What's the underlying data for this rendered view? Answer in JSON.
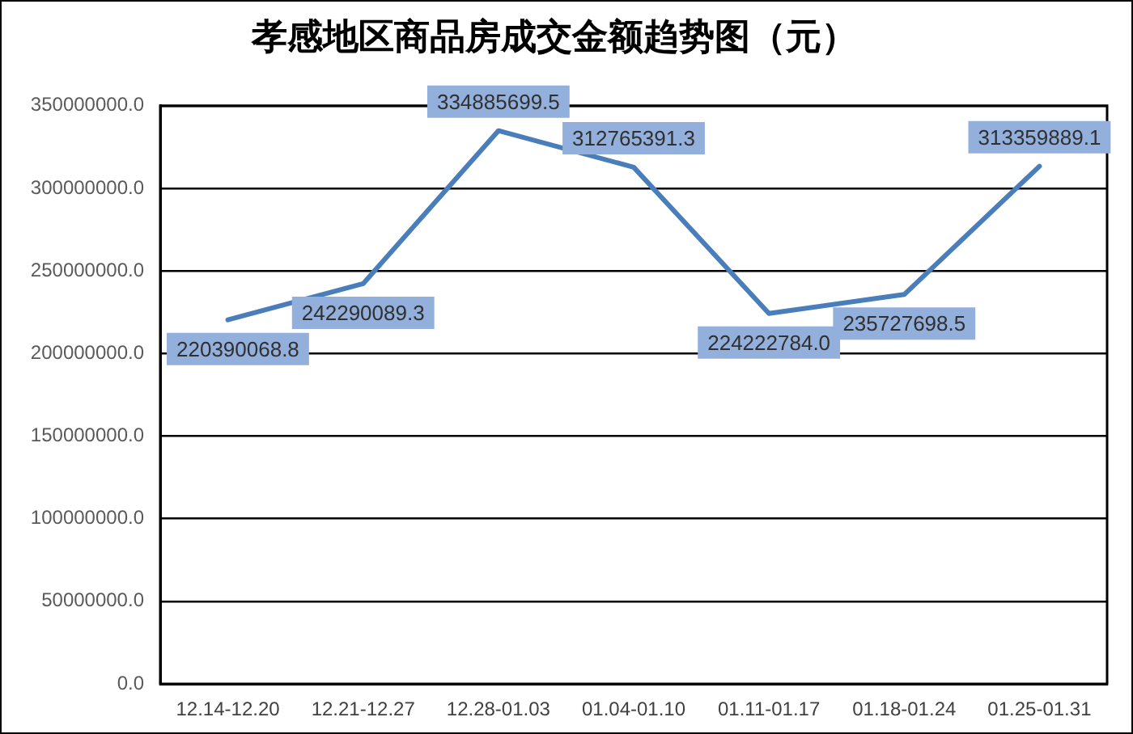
{
  "chart_data": {
    "type": "line",
    "title": "孝感地区商品房成交金额趋势图（元）",
    "categories": [
      "12.14-12.20",
      "12.21-12.27",
      "12.28-01.03",
      "01.04-01.10",
      "01.11-01.17",
      "01.18-01.24",
      "01.25-01.31"
    ],
    "values": [
      220390068.8,
      242290089.3,
      334885699.5,
      312765391.3,
      224222784.0,
      235727698.5,
      313359889.1
    ],
    "value_labels": [
      "220390068.8",
      "242290089.3",
      "334885699.5",
      "312765391.3",
      "224222784.0",
      "235727698.5",
      "313359889.1"
    ],
    "color": "#4a7ebb",
    "ylim": [
      0,
      350000000
    ],
    "yticks": [
      {
        "value": 0,
        "label": "0.0"
      },
      {
        "value": 50000000,
        "label": "50000000.0"
      },
      {
        "value": 100000000,
        "label": "100000000.0"
      },
      {
        "value": 150000000,
        "label": "150000000.0"
      },
      {
        "value": 200000000,
        "label": "200000000.0"
      },
      {
        "value": 250000000,
        "label": "250000000.0"
      },
      {
        "value": 300000000,
        "label": "300000000.0"
      },
      {
        "value": 350000000,
        "label": "350000000.0"
      }
    ],
    "grid": "y"
  }
}
